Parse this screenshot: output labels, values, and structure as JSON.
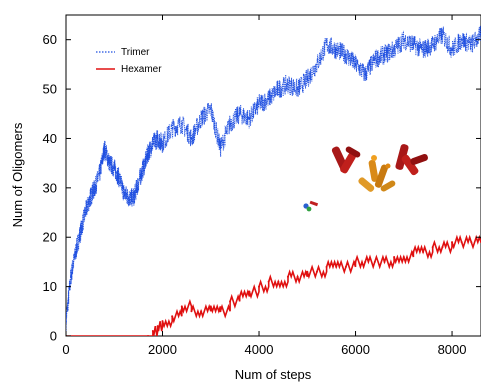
{
  "chart_data": {
    "type": "line",
    "title": "",
    "xlabel": "Num of steps",
    "ylabel": "Num of Oligomers",
    "xlim": [
      0,
      8600
    ],
    "ylim": [
      0,
      65
    ],
    "xticks": [
      0,
      2000,
      4000,
      6000,
      8000
    ],
    "yticks": [
      0,
      10,
      20,
      30,
      40,
      50,
      60
    ],
    "grid": false,
    "legend_position": "top-left",
    "series": [
      {
        "name": "Trimer",
        "color": "#1f4fe0",
        "style": "dotted-noisy",
        "x": [
          0,
          100,
          200,
          300,
          400,
          500,
          600,
          700,
          800,
          900,
          1000,
          1100,
          1200,
          1300,
          1400,
          1500,
          1600,
          1700,
          1800,
          1900,
          2000,
          2200,
          2400,
          2600,
          2800,
          3000,
          3200,
          3400,
          3600,
          3800,
          4000,
          4200,
          4400,
          4600,
          4800,
          5000,
          5200,
          5400,
          5600,
          5800,
          6000,
          6200,
          6400,
          6600,
          6800,
          7000,
          7200,
          7400,
          7600,
          7800,
          8000,
          8200,
          8400,
          8600
        ],
        "values": [
          3,
          12,
          17,
          21,
          25,
          28,
          30,
          33,
          38,
          35,
          34,
          32,
          29,
          28,
          28,
          31,
          34,
          37,
          39,
          40,
          39,
          42,
          43,
          40,
          44,
          46,
          38,
          43,
          45,
          44,
          47,
          48,
          50,
          51,
          50,
          52,
          55,
          59,
          58,
          57,
          55,
          53,
          56,
          57,
          58,
          60,
          59,
          58,
          59,
          61,
          58,
          60,
          59,
          61
        ]
      },
      {
        "name": "Hexamer",
        "color": "#e01010",
        "style": "step",
        "x": [
          0,
          1700,
          1800,
          1900,
          2000,
          2200,
          2400,
          2600,
          2800,
          3000,
          3200,
          3400,
          3600,
          3800,
          4000,
          4200,
          4400,
          4600,
          4800,
          5000,
          5200,
          5400,
          5600,
          5800,
          6000,
          6200,
          6400,
          6600,
          6800,
          7000,
          7200,
          7400,
          7600,
          7800,
          8000,
          8200,
          8400,
          8600
        ],
        "values": [
          0,
          0,
          1,
          2,
          3,
          4,
          6,
          5,
          5,
          6,
          5,
          7,
          8,
          9,
          10,
          11,
          11,
          12,
          12,
          13,
          13,
          14,
          14,
          14,
          15,
          15,
          15,
          15,
          16,
          16,
          17,
          17,
          18,
          18,
          19,
          19,
          19,
          19
        ]
      }
    ]
  }
}
